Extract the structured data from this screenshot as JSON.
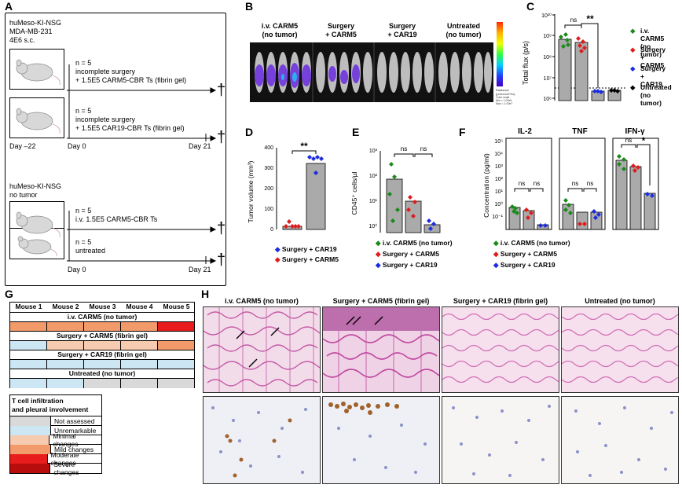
{
  "panel_labels": {
    "A": "A",
    "B": "B",
    "C": "C",
    "D": "D",
    "E": "E",
    "F": "F",
    "G": "G",
    "H": "H"
  },
  "panel_a": {
    "group1": {
      "strain": "huMeso-KI-NSG",
      "cells": "MDA-MB-231",
      "dose": "4E6 s.c."
    },
    "group2": {
      "strain": "huMeso-KI-NSG",
      "cells": "no tumor"
    },
    "arms": [
      {
        "n": "n = 5",
        "line1": "incomplete surgery",
        "line2": "+ 1.5E5 CARM5-CBR Ts (fibrin gel)"
      },
      {
        "n": "n = 5",
        "line1": "incomplete surgery",
        "line2": "+ 1.5E5 CAR19-CBR Ts (fibrin gel)"
      },
      {
        "n": "n = 5",
        "line1": "i.v. 1.5E5 CARM5-CBR Ts",
        "line2": ""
      },
      {
        "n": "n = 5",
        "line1": "untreated",
        "line2": ""
      }
    ],
    "timeline1": {
      "start": "Day –22",
      "mid": "Day 0",
      "end": "Day 21"
    },
    "timeline2": {
      "mid": "Day 0",
      "end": "Day 21"
    },
    "dagger": "†"
  },
  "panel_b": {
    "groups": [
      "i.v. CARM5\n(no tumor)",
      "Surgery\n+ CARM5",
      "Surgery\n+ CAR19",
      "Untreated\n(no tumor)"
    ],
    "scale_label": "Radiance\n(p/sec/cm²/sr)",
    "color_scale": "Color scale\nMin = 1.00e5\nMax = 1.00e7"
  },
  "panel_c": {
    "ylabel": "Total flux (p/s)",
    "yticks": [
      "10^10",
      "10^9",
      "10^8",
      "10^7",
      "10^6"
    ],
    "sig": [
      "ns",
      "**"
    ],
    "legend": [
      {
        "label": "i.v. CARM5\n(no tumor)",
        "color": "#1a8a1a"
      },
      {
        "label": "Surgery\n+ CARM5",
        "color": "#e01b1b"
      },
      {
        "label": "Surgery\n+ CAR19",
        "color": "#1a2be0"
      },
      {
        "label": "Untreated\n(no tumor)",
        "color": "#000000"
      }
    ]
  },
  "panel_d": {
    "ylabel": "Tumor volume (mm³)",
    "yticks": [
      "0",
      "100",
      "200",
      "300",
      "400"
    ],
    "sig": "**",
    "legend": [
      {
        "label": "Surgery + CAR19",
        "color": "#1a2be0"
      },
      {
        "label": "Surgery + CARM5",
        "color": "#e01b1b"
      }
    ]
  },
  "panel_e": {
    "ylabel": "CD45⁺ cells/µl",
    "yticks": [
      "10^0",
      "10^1",
      "10^2",
      "10^3"
    ],
    "sig": [
      "ns",
      "ns"
    ],
    "legend": [
      {
        "label": "i.v. CARM5 (no tumor)",
        "color": "#1a8a1a"
      },
      {
        "label": "Surgery + CARM5",
        "color": "#e01b1b"
      },
      {
        "label": "Surgery + CAR19",
        "color": "#1a2be0"
      }
    ]
  },
  "panel_f": {
    "ylabel": "Concentration (pg/ml)",
    "titles": [
      "IL-2",
      "TNF",
      "IFN-γ"
    ],
    "yticks": [
      "10^-1",
      "10^0",
      "10^1",
      "10^2",
      "10^3",
      "10^4",
      "10^5"
    ],
    "sig_il2": [
      "ns",
      "ns"
    ],
    "sig_tnf": [
      "ns",
      "ns"
    ],
    "sig_ifn": [
      "ns",
      "*"
    ],
    "legend": [
      {
        "label": "i.v. CARM5 (no tumor)",
        "color": "#1a8a1a"
      },
      {
        "label": "Surgery + CARM5",
        "color": "#e01b1b"
      },
      {
        "label": "Surgery + CAR19",
        "color": "#1a2be0"
      }
    ]
  },
  "chart_data": [
    {
      "type": "bar",
      "panel": "C",
      "categories": [
        "i.v. CARM5 (no tumor)",
        "Surgery + CARM5",
        "Surgery + CAR19",
        "Untreated (no tumor)"
      ],
      "values": [
        800000000,
        400000000,
        500000,
        600000
      ],
      "scale": "log",
      "ylim": [
        100000,
        10000000000
      ],
      "threshold": 1000000,
      "ylabel": "Total flux (p/s)"
    },
    {
      "type": "bar",
      "panel": "D",
      "categories": [
        "Surgery + CARM5",
        "Surgery + CAR19"
      ],
      "values": [
        15,
        320
      ],
      "ylim": [
        0,
        400
      ],
      "ylabel": "Tumor volume (mm³)"
    },
    {
      "type": "bar",
      "panel": "E",
      "categories": [
        "i.v. CARM5 (no tumor)",
        "Surgery + CARM5",
        "Surgery + CAR19"
      ],
      "values": [
        20,
        2,
        0.25
      ],
      "scale": "log",
      "ylim": [
        0.1,
        1000
      ],
      "ylabel": "CD45⁺ cells/µl"
    },
    {
      "type": "bar",
      "panel": "F",
      "series": [
        {
          "name": "IL-2",
          "values": [
            2,
            0.8,
            0.15
          ]
        },
        {
          "name": "TNF",
          "values": [
            4,
            0.6,
            0.6
          ]
        },
        {
          "name": "IFN-γ",
          "values": [
            3000,
            700,
            12
          ]
        }
      ],
      "categories": [
        "i.v. CARM5 (no tumor)",
        "Surgery + CARM5",
        "Surgery + CAR19"
      ],
      "scale": "log",
      "ylim": [
        0.1,
        100000
      ],
      "ylabel": "Concentration (pg/ml)"
    }
  ],
  "panel_g": {
    "mice": [
      "Mouse 1",
      "Mouse 2",
      "Mouse 3",
      "Mouse 4",
      "Mouse 5"
    ],
    "groups": [
      {
        "name": "i.v. CARM5 (no tumor)",
        "cells": [
          "#f29a6a",
          "#f29a6a",
          "#f29a6a",
          "#f29a6a",
          "#e81c1c"
        ]
      },
      {
        "name": "Surgery + CARM5 (fibrin gel)",
        "cells": [
          "#cce6f4",
          "#f29a6a",
          "#f29a6a",
          "#f29a6a",
          "#f29a6a"
        ]
      },
      {
        "name": "Surgery + CAR19 (fibrin gel)",
        "cells": [
          "#cce6f4",
          "#cce6f4",
          "#cce6f4",
          "#cce6f4",
          "#cce6f4"
        ]
      },
      {
        "name": "Untreated (no tumor)",
        "cells": [
          "#cce6f4",
          "#cce6f4",
          "#d9d9d9",
          "#d9d9d9",
          "#d9d9d9"
        ]
      }
    ],
    "legend_title": "T cell infiltration\nand pleural involvement",
    "legend": [
      {
        "label": "Not assessed",
        "color": "#d9d9d9"
      },
      {
        "label": "Unremarkable",
        "color": "#cce6f4"
      },
      {
        "label": "Minimal changes",
        "color": "#f7cbb0"
      },
      {
        "label": "Mild changes",
        "color": "#f29a6a"
      },
      {
        "label": "Moderate changes",
        "color": "#e81c1c"
      },
      {
        "label": "Severe changes",
        "color": "#b80d0d"
      }
    ]
  },
  "panel_h": {
    "headers": [
      "i.v. CARM5 (no tumor)",
      "Surgery + CARM5 (fibrin gel)",
      "Surgery + CAR19 (fibrin gel)",
      "Untreated (no tumor)"
    ]
  }
}
